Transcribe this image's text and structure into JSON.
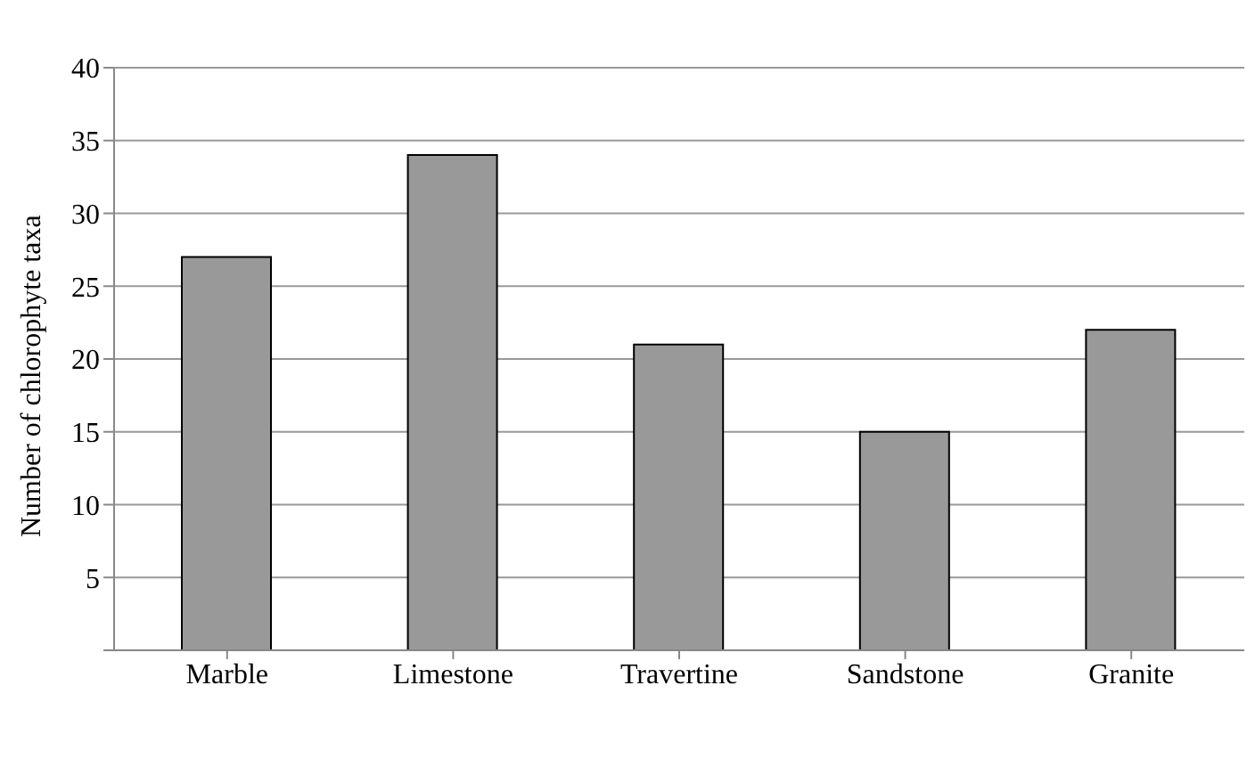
{
  "chart_data": {
    "type": "bar",
    "ylabel": "Number of chlorophyte taxa",
    "categories": [
      "Marble",
      "Limestone",
      "Travertine",
      "Sandstone",
      "Granite"
    ],
    "values": [
      27,
      34,
      21,
      15,
      22
    ],
    "color": "#999999",
    "ylim": [
      0,
      40
    ],
    "yticks": [
      {
        "value": 0,
        "label": null
      },
      5,
      10,
      15,
      20,
      25,
      30,
      35,
      40
    ],
    "grid": "y"
  }
}
